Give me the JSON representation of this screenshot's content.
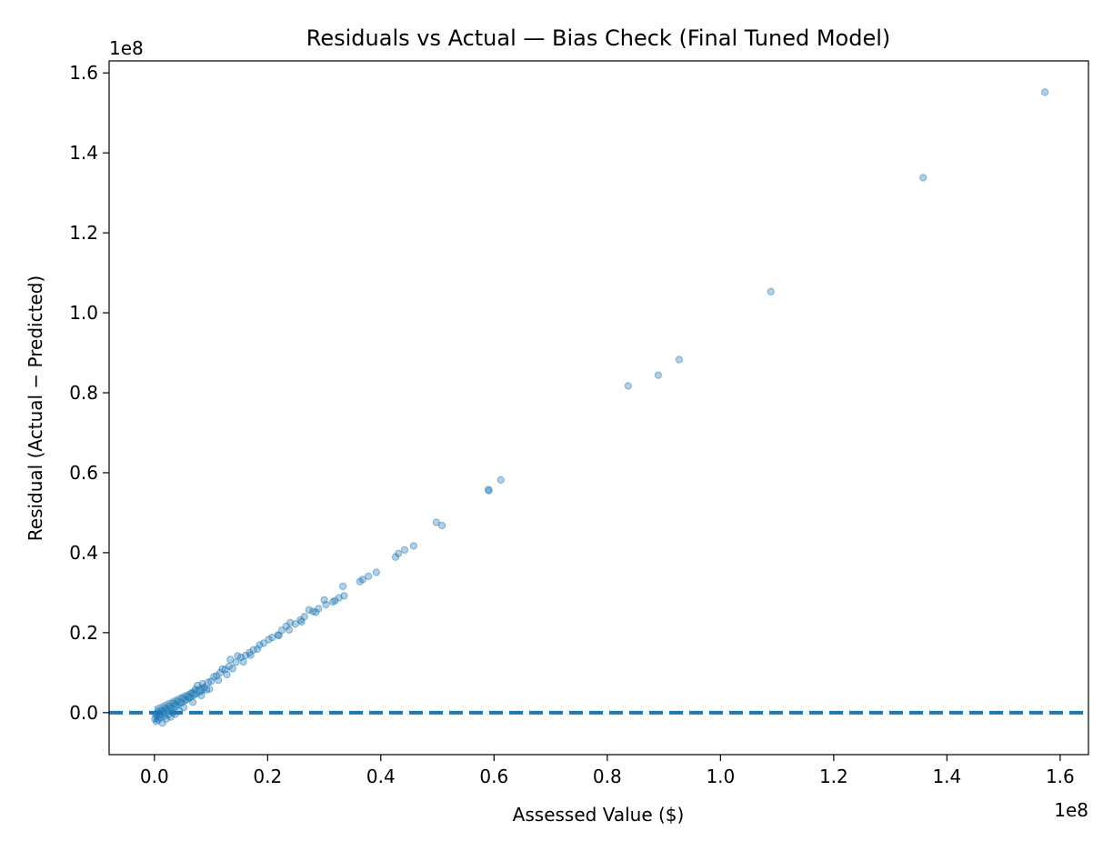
{
  "chart_data": {
    "type": "scatter",
    "title": "Residuals vs Actual — Bias Check (Final Tuned Model)",
    "xlabel": "Assessed Value ($)",
    "ylabel": "Residual (Actual − Predicted)",
    "x_offset_text": "1e8",
    "y_offset_text": "1e8",
    "xlim": [
      -8000000,
      165000000
    ],
    "ylim": [
      -10500000,
      163000000
    ],
    "xticks": [
      0,
      20000000,
      40000000,
      60000000,
      80000000,
      100000000,
      120000000,
      140000000,
      160000000
    ],
    "xtick_labels": [
      "0.0",
      "0.2",
      "0.4",
      "0.6",
      "0.8",
      "1.0",
      "1.2",
      "1.4",
      "1.6"
    ],
    "yticks": [
      0,
      20000000,
      40000000,
      60000000,
      80000000,
      100000000,
      120000000,
      140000000,
      160000000
    ],
    "ytick_labels": [
      "0.0",
      "0.2",
      "0.4",
      "0.6",
      "0.8",
      "1.0",
      "1.2",
      "1.4",
      "1.6"
    ],
    "marker_color": "#1f77b4",
    "reference_line": {
      "y": 0,
      "style": "dashed",
      "color": "#1f77b4"
    },
    "grid": false,
    "points": [
      [
        157300000,
        155200000
      ],
      [
        135800000,
        133800000
      ],
      [
        108900000,
        105300000
      ],
      [
        92700000,
        88300000
      ],
      [
        89000000,
        84400000
      ],
      [
        83700000,
        81700000
      ],
      [
        61200000,
        58200000
      ],
      [
        59100000,
        55500000
      ],
      [
        59000000,
        55800000
      ],
      [
        50800000,
        46800000
      ],
      [
        49800000,
        47600000
      ],
      [
        45800000,
        41700000
      ],
      [
        44200000,
        40700000
      ],
      [
        43100000,
        39800000
      ],
      [
        42600000,
        38900000
      ],
      [
        39200000,
        35100000
      ],
      [
        37800000,
        34100000
      ],
      [
        36800000,
        33300000
      ],
      [
        36300000,
        32800000
      ],
      [
        33300000,
        31600000
      ],
      [
        33500000,
        29200000
      ],
      [
        32600000,
        28700000
      ],
      [
        31900000,
        28000000
      ],
      [
        30300000,
        27000000
      ],
      [
        30000000,
        28200000
      ],
      [
        29000000,
        26000000
      ],
      [
        28000000,
        25300000
      ],
      [
        27300000,
        25700000
      ],
      [
        26500000,
        24000000
      ],
      [
        25800000,
        23200000
      ],
      [
        24900000,
        22200000
      ],
      [
        24000000,
        22500000
      ],
      [
        23300000,
        21600000
      ],
      [
        22500000,
        20600000
      ],
      [
        21800000,
        19400000
      ],
      [
        20800000,
        18800000
      ],
      [
        20200000,
        18300000
      ],
      [
        19300000,
        17400000
      ],
      [
        18600000,
        16900000
      ],
      [
        17500000,
        15700000
      ],
      [
        16800000,
        15000000
      ],
      [
        16100000,
        14300000
      ],
      [
        15300000,
        13800000
      ],
      [
        14700000,
        14200000
      ],
      [
        14400000,
        12600000
      ],
      [
        13400000,
        13300000
      ],
      [
        13200000,
        11600000
      ],
      [
        12500000,
        10800000
      ],
      [
        12000000,
        10900000
      ],
      [
        11600000,
        10000000
      ],
      [
        11000000,
        9200000
      ],
      [
        10500000,
        9000000
      ],
      [
        10000000,
        7800000
      ],
      [
        9500000,
        7600000
      ],
      [
        9200000,
        5700000
      ],
      [
        8800000,
        6200000
      ],
      [
        8500000,
        7200000
      ],
      [
        8000000,
        5400000
      ],
      [
        7600000,
        6800000
      ],
      [
        7200000,
        5800000
      ],
      [
        7000000,
        4600000
      ],
      [
        6600000,
        4900000
      ],
      [
        6200000,
        3800000
      ],
      [
        5900000,
        4100000
      ],
      [
        5500000,
        3200000
      ],
      [
        5000000,
        3600000
      ],
      [
        4600000,
        2500000
      ],
      [
        4100000,
        2800000
      ],
      [
        3800000,
        1900000
      ],
      [
        3400000,
        2300000
      ],
      [
        3000000,
        1200000
      ],
      [
        2600000,
        1600000
      ],
      [
        2200000,
        700000
      ],
      [
        1900000,
        1100000
      ],
      [
        1500000,
        200000
      ],
      [
        1200000,
        600000
      ],
      [
        900000,
        -300000
      ],
      [
        600000,
        100000
      ],
      [
        400000,
        -800000
      ],
      [
        200000,
        -400000
      ],
      [
        100000,
        -1500000
      ],
      [
        300000,
        -2200000
      ],
      [
        700000,
        -1800000
      ],
      [
        1100000,
        -1200000
      ],
      [
        1400000,
        -2600000
      ],
      [
        1800000,
        -900000
      ],
      [
        2100000,
        -1600000
      ],
      [
        2500000,
        -500000
      ],
      [
        2900000,
        -1100000
      ],
      [
        3300000,
        0
      ],
      [
        3700000,
        -400000
      ],
      [
        4400000,
        400000
      ],
      [
        5200000,
        1300000
      ],
      [
        6800000,
        2600000
      ],
      [
        8300000,
        4300000
      ],
      [
        9700000,
        5900000
      ],
      [
        11300000,
        8100000
      ],
      [
        12800000,
        9500000
      ],
      [
        13800000,
        11000000
      ],
      [
        15700000,
        12700000
      ],
      [
        17000000,
        14400000
      ],
      [
        18200000,
        15900000
      ],
      [
        22000000,
        19300000
      ],
      [
        23800000,
        20700000
      ],
      [
        26000000,
        22700000
      ],
      [
        28500000,
        25100000
      ],
      [
        31500000,
        27700000
      ]
    ]
  }
}
